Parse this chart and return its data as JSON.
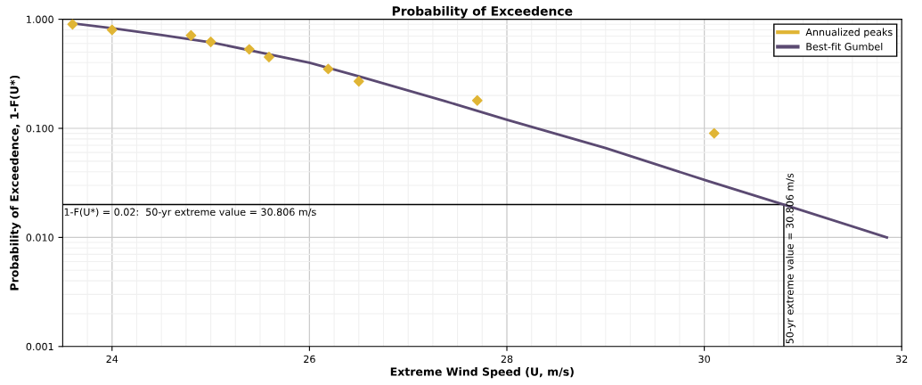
{
  "chart_data": {
    "type": "scatter",
    "title": "Probability of Exceedence",
    "xlabel": "Extreme Wind Speed (U, m/s)",
    "ylabel": "Probability of Exceedence, 1-F(U*)",
    "series": [
      {
        "name": "Annualized peaks",
        "color": "#e0b535",
        "marker": "diamond",
        "x": [
          23.6,
          24.0,
          24.8,
          25.0,
          25.39,
          25.59,
          26.19,
          26.5,
          27.7,
          30.1
        ],
        "values": [
          0.9,
          0.8,
          0.71,
          0.62,
          0.53,
          0.45,
          0.35,
          0.27,
          0.18,
          0.09
        ]
      },
      {
        "name": "Best-fit Gumbel",
        "type": "line",
        "color": "#5b4a72",
        "marker": "none",
        "x": [
          23.59,
          24.0,
          24.49,
          25.02,
          26.0,
          26.5,
          27.37,
          28.0,
          29.0,
          30.03,
          30.806,
          31.85
        ],
        "values": [
          0.92,
          0.83,
          0.72,
          0.61,
          0.4,
          0.3,
          0.178,
          0.12,
          0.066,
          0.033,
          0.02,
          0.01
        ]
      }
    ],
    "log": "y",
    "xlim": [
      23.5,
      32
    ],
    "ylim": [
      0.001,
      1
    ],
    "xticks": [
      24,
      26,
      28,
      30,
      32
    ],
    "yticks": [
      {
        "value": 0.001,
        "label": "0.001"
      },
      {
        "value": 0.01,
        "label": "0.010"
      },
      {
        "value": 0.1,
        "label": "0.100"
      },
      {
        "value": 1,
        "label": "1.000"
      }
    ],
    "grid": true,
    "legend": "top right",
    "ref_lines": [
      {
        "axis": "y",
        "value": 0.02,
        "label": "1-F(U*) = 0.02:  50-yr extreme value = 30.806 m/s",
        "color": "#000000"
      },
      {
        "axis": "x",
        "value": 30.806,
        "label": "50-yr extreme value = 30.806 m/s",
        "color": "#000000"
      }
    ]
  }
}
